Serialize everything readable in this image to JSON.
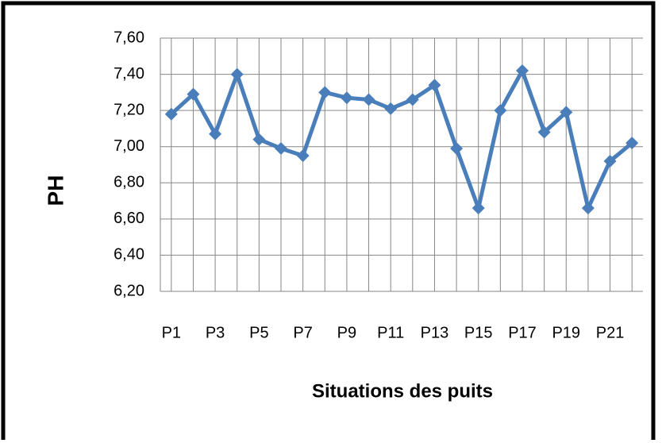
{
  "chart_data": {
    "type": "line",
    "ylabel": "PH",
    "xlabel": "Situations des puits",
    "categories": [
      "P1",
      null,
      "P3",
      null,
      "P5",
      null,
      "P7",
      null,
      "P9",
      null,
      "P11",
      null,
      "P13",
      null,
      "P15",
      null,
      "P17",
      null,
      "P19",
      null,
      "P21",
      null
    ],
    "series": [
      {
        "name": "PH",
        "color": "#4a7ebb",
        "values": [
          7.18,
          7.29,
          7.07,
          7.4,
          7.04,
          6.99,
          6.95,
          7.3,
          7.27,
          7.26,
          7.21,
          7.26,
          7.34,
          6.99,
          6.66,
          7.2,
          7.42,
          7.08,
          7.19,
          6.66,
          6.92,
          7.02
        ]
      }
    ],
    "ylim": [
      6.2,
      7.6
    ],
    "yticks": [
      {
        "value": 6.2,
        "label": "6,20"
      },
      {
        "value": 6.4,
        "label": "6,40"
      },
      {
        "value": 6.6,
        "label": "6,60"
      },
      {
        "value": 6.8,
        "label": "6,80"
      },
      {
        "value": 7.0,
        "label": "7,00"
      },
      {
        "value": 7.2,
        "label": "7,20"
      },
      {
        "value": 7.4,
        "label": "7,40"
      },
      {
        "value": 7.6,
        "label": "7,60"
      }
    ],
    "grid": true
  }
}
